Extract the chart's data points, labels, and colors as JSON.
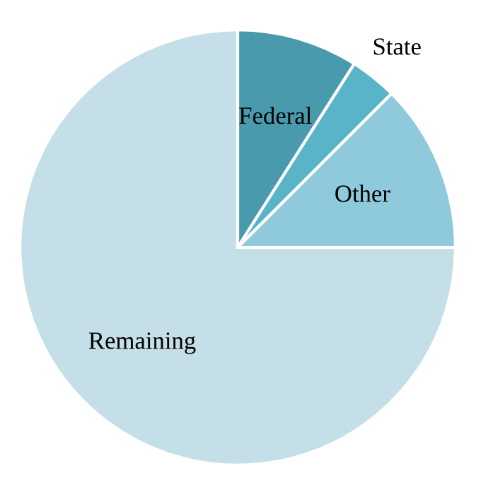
{
  "chart_data": {
    "type": "pie",
    "categories": [
      "Federal",
      "State",
      "Other",
      "Remaining"
    ],
    "values": [
      9,
      3.5,
      12.5,
      75
    ],
    "colors": [
      "#4a9aad",
      "#5ab4c8",
      "#8ecadb",
      "#c5dfe8"
    ]
  }
}
